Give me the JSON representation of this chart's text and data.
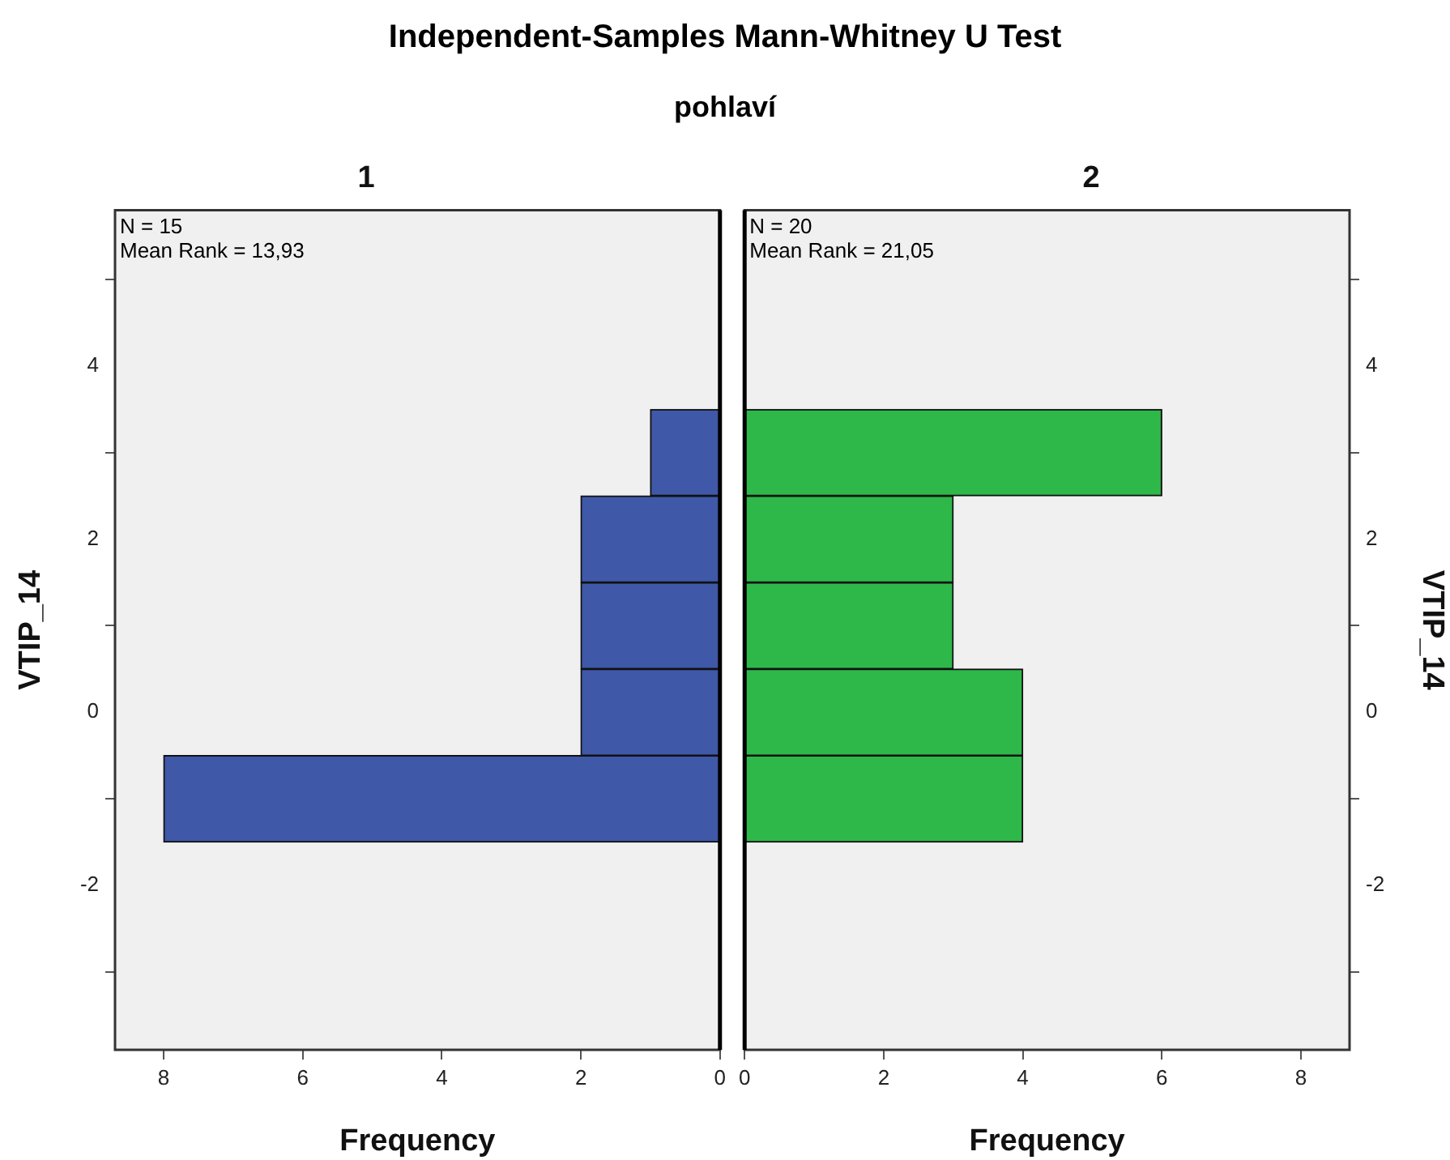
{
  "chart_data": [
    {
      "type": "other",
      "title": "Independent-Samples Mann-Whitney U Test",
      "subtitle": "pohlaví"
    },
    {
      "type": "histogram",
      "orientation": "horizontal",
      "title": "1",
      "xlabel": "Frequency",
      "ylabel": "VTIP_14",
      "bins": [
        -1.5,
        -0.5,
        0.5,
        1.5,
        2.5,
        3.5
      ],
      "values": [
        8,
        2,
        2,
        2,
        1
      ],
      "color": "#3f58a8",
      "xlim": [
        8.7,
        0
      ],
      "xticks": [
        8,
        6,
        4,
        2,
        0
      ],
      "ylim": [
        -3.9,
        5.8
      ],
      "yticks": [
        -2,
        0,
        2,
        4
      ],
      "annotations": [
        "N = 15",
        "Mean Rank = 13,93"
      ],
      "grid": false,
      "legend": false
    },
    {
      "type": "histogram",
      "orientation": "horizontal",
      "title": "2",
      "xlabel": "Frequency",
      "ylabel": "VTIP_14",
      "bins": [
        -1.5,
        -0.5,
        0.5,
        1.5,
        2.5,
        3.5
      ],
      "values": [
        4,
        4,
        3,
        3,
        6
      ],
      "color": "#2eb84a",
      "xlim": [
        0,
        8.7
      ],
      "xticks": [
        0,
        2,
        4,
        6,
        8
      ],
      "ylim": [
        -3.9,
        5.8
      ],
      "yticks": [
        -2,
        0,
        2,
        4
      ],
      "annotations": [
        "N = 20",
        "Mean Rank = 21,05"
      ],
      "grid": false,
      "legend": false
    }
  ]
}
